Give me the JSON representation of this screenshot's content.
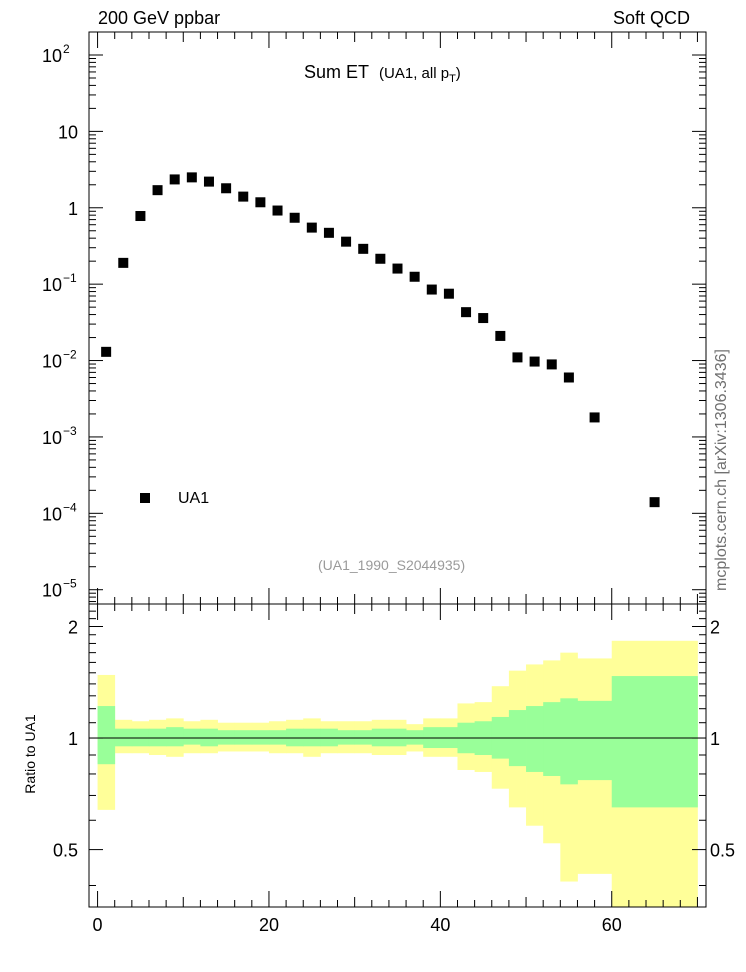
{
  "header": {
    "left": "200 GeV ppbar",
    "right": "Soft QCD"
  },
  "side_label": "mcplots.cern.ch [arXiv:1306.3436]",
  "chart_data": [
    {
      "type": "scatter",
      "title": "Sum ET",
      "title_extra": "(UA1, all p",
      "title_extra_sub": "T",
      "title_extra_end": ")",
      "yscale": "log",
      "ylim": [
        6.5e-06,
        200
      ],
      "xlim": [
        -1,
        71
      ],
      "y_ticks": [
        {
          "value": 100,
          "base": "10",
          "exp": "2"
        },
        {
          "value": 10,
          "base": "10",
          "exp": ""
        },
        {
          "value": 1,
          "base": "1",
          "exp": ""
        },
        {
          "value": 0.1,
          "base": "10",
          "exp": "−1"
        },
        {
          "value": 0.01,
          "base": "10",
          "exp": "−2"
        },
        {
          "value": 0.001,
          "base": "10",
          "exp": "−3"
        },
        {
          "value": 0.0001,
          "base": "10",
          "exp": "−4"
        },
        {
          "value": 1e-05,
          "base": "10",
          "exp": "−5"
        }
      ],
      "legend": {
        "entries": [
          "UA1"
        ],
        "position": "bottom-left"
      },
      "reference": "(UA1_1990_S2044935)",
      "series": [
        {
          "name": "UA1",
          "color": "#000000",
          "x": [
            1,
            3,
            5,
            7,
            9,
            11,
            13,
            15,
            17,
            19,
            21,
            23,
            25,
            27,
            29,
            31,
            33,
            35,
            37,
            39,
            41,
            43,
            45,
            47,
            49,
            51,
            53,
            55,
            58,
            65
          ],
          "y": [
            0.013,
            0.19,
            0.78,
            1.7,
            2.35,
            2.5,
            2.2,
            1.8,
            1.4,
            1.18,
            0.92,
            0.74,
            0.55,
            0.47,
            0.36,
            0.29,
            0.215,
            0.16,
            0.125,
            0.085,
            0.075,
            0.043,
            0.036,
            0.021,
            0.011,
            0.0097,
            0.0089,
            0.006,
            0.0018,
            0.00014
          ]
        }
      ]
    },
    {
      "type": "area",
      "ylabel": "Ratio to UA1",
      "ylim": [
        0.35,
        2.3
      ],
      "xlim": [
        -1,
        71
      ],
      "x_ticks": [
        0,
        20,
        40,
        60
      ],
      "y_ticks": [
        0.5,
        1,
        2
      ],
      "reference_line": 1,
      "colors": {
        "inner": "#99ff99",
        "outer": "#ffff99"
      },
      "bins": [
        {
          "lo": 0,
          "hi": 2,
          "inner": [
            0.85,
            1.22
          ],
          "outer": [
            0.64,
            1.48
          ]
        },
        {
          "lo": 2,
          "hi": 4,
          "inner": [
            0.95,
            1.06
          ],
          "outer": [
            0.91,
            1.12
          ]
        },
        {
          "lo": 4,
          "hi": 6,
          "inner": [
            0.95,
            1.06
          ],
          "outer": [
            0.91,
            1.11
          ]
        },
        {
          "lo": 6,
          "hi": 8,
          "inner": [
            0.95,
            1.06
          ],
          "outer": [
            0.9,
            1.12
          ]
        },
        {
          "lo": 8,
          "hi": 10,
          "inner": [
            0.95,
            1.07
          ],
          "outer": [
            0.89,
            1.13
          ]
        },
        {
          "lo": 10,
          "hi": 12,
          "inner": [
            0.96,
            1.06
          ],
          "outer": [
            0.91,
            1.11
          ]
        },
        {
          "lo": 12,
          "hi": 14,
          "inner": [
            0.95,
            1.06
          ],
          "outer": [
            0.91,
            1.12
          ]
        },
        {
          "lo": 14,
          "hi": 16,
          "inner": [
            0.96,
            1.05
          ],
          "outer": [
            0.92,
            1.1
          ]
        },
        {
          "lo": 16,
          "hi": 18,
          "inner": [
            0.96,
            1.05
          ],
          "outer": [
            0.92,
            1.1
          ]
        },
        {
          "lo": 18,
          "hi": 20,
          "inner": [
            0.96,
            1.05
          ],
          "outer": [
            0.92,
            1.1
          ]
        },
        {
          "lo": 20,
          "hi": 22,
          "inner": [
            0.96,
            1.05
          ],
          "outer": [
            0.91,
            1.11
          ]
        },
        {
          "lo": 22,
          "hi": 24,
          "inner": [
            0.95,
            1.06
          ],
          "outer": [
            0.91,
            1.12
          ]
        },
        {
          "lo": 24,
          "hi": 26,
          "inner": [
            0.95,
            1.06
          ],
          "outer": [
            0.89,
            1.13
          ]
        },
        {
          "lo": 26,
          "hi": 28,
          "inner": [
            0.95,
            1.06
          ],
          "outer": [
            0.91,
            1.11
          ]
        },
        {
          "lo": 28,
          "hi": 30,
          "inner": [
            0.96,
            1.05
          ],
          "outer": [
            0.91,
            1.11
          ]
        },
        {
          "lo": 30,
          "hi": 32,
          "inner": [
            0.96,
            1.05
          ],
          "outer": [
            0.91,
            1.11
          ]
        },
        {
          "lo": 32,
          "hi": 34,
          "inner": [
            0.95,
            1.06
          ],
          "outer": [
            0.9,
            1.12
          ]
        },
        {
          "lo": 34,
          "hi": 36,
          "inner": [
            0.95,
            1.06
          ],
          "outer": [
            0.9,
            1.12
          ]
        },
        {
          "lo": 36,
          "hi": 38,
          "inner": [
            0.96,
            1.05
          ],
          "outer": [
            0.92,
            1.09
          ]
        },
        {
          "lo": 38,
          "hi": 40,
          "inner": [
            0.94,
            1.07
          ],
          "outer": [
            0.89,
            1.13
          ]
        },
        {
          "lo": 40,
          "hi": 42,
          "inner": [
            0.94,
            1.07
          ],
          "outer": [
            0.89,
            1.13
          ]
        },
        {
          "lo": 42,
          "hi": 44,
          "inner": [
            0.91,
            1.1
          ],
          "outer": [
            0.82,
            1.24
          ]
        },
        {
          "lo": 44,
          "hi": 46,
          "inner": [
            0.9,
            1.11
          ],
          "outer": [
            0.81,
            1.25
          ]
        },
        {
          "lo": 46,
          "hi": 48,
          "inner": [
            0.88,
            1.14
          ],
          "outer": [
            0.73,
            1.38
          ]
        },
        {
          "lo": 48,
          "hi": 50,
          "inner": [
            0.84,
            1.19
          ],
          "outer": [
            0.65,
            1.52
          ]
        },
        {
          "lo": 50,
          "hi": 52,
          "inner": [
            0.81,
            1.22
          ],
          "outer": [
            0.58,
            1.58
          ]
        },
        {
          "lo": 52,
          "hi": 54,
          "inner": [
            0.79,
            1.25
          ],
          "outer": [
            0.52,
            1.62
          ]
        },
        {
          "lo": 54,
          "hi": 56,
          "inner": [
            0.75,
            1.28
          ],
          "outer": [
            0.41,
            1.7
          ]
        },
        {
          "lo": 56,
          "hi": 60,
          "inner": [
            0.77,
            1.26
          ],
          "outer": [
            0.43,
            1.64
          ]
        },
        {
          "lo": 60,
          "hi": 70,
          "inner": [
            0.65,
            1.47
          ],
          "outer": [
            0.22,
            1.83
          ]
        }
      ]
    }
  ]
}
